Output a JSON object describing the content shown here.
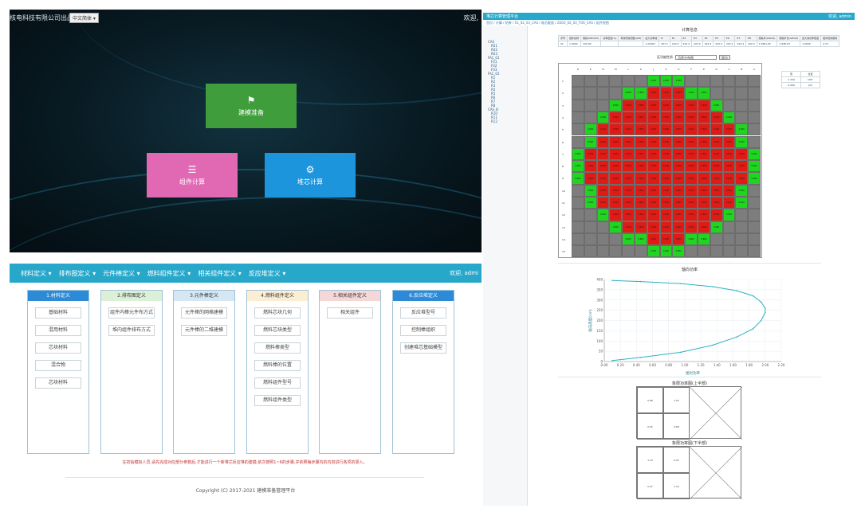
{
  "launcher": {
    "company": "核电科技有限公司出品",
    "lang_select": "中文简体 ▾",
    "welcome": "欢迎,",
    "tiles": [
      {
        "label": "建模准备",
        "icon": "flag-icon",
        "color": "#3f9d3c"
      },
      {
        "label": "组件计算",
        "icon": "list-icon",
        "color": "#e169b4"
      },
      {
        "label": "堆芯计算",
        "icon": "gear-icon",
        "color": "#1c95dd"
      }
    ]
  },
  "definitions": {
    "nav": [
      "材料定义 ▾",
      "排布图定义 ▾",
      "元件棒定义 ▾",
      "燃料组件定义 ▾",
      "相关组件定义 ▾",
      "反应堆定义 ▾"
    ],
    "user": "欢迎, admi",
    "columns": [
      {
        "title": "1.材料定义",
        "head_color": "#2c8ad6",
        "head_text": "#ffffff",
        "items": [
          "基础材料",
          "混用材料",
          "芯块材料",
          "混合物",
          "芯块材料"
        ]
      },
      {
        "title": "2.排布图定义",
        "head_color": "#dcefd7",
        "head_text": "#333333",
        "items": [
          "组件内棒元件布方式",
          "堆内组件排布方式"
        ]
      },
      {
        "title": "3.元件棒定义",
        "head_color": "#d4e7f3",
        "head_text": "#333333",
        "items": [
          "元件棒的网格建模",
          "元件棒的二维建模"
        ]
      },
      {
        "title": "4.燃料组件定义",
        "head_color": "#fbeed3",
        "head_text": "#333333",
        "items": [
          "燃料芯块几何",
          "燃料芯块类型",
          "燃料棒类型",
          "燃料棒的位置",
          "燃料组件型号",
          "燃料组件类型"
        ]
      },
      {
        "title": "5.相关组件定义",
        "head_color": "#f5d7d7",
        "head_text": "#333333",
        "items": [
          "相关组件"
        ]
      },
      {
        "title": "6.反应堆定义",
        "head_color": "#2c8ad6",
        "head_text": "#ffffff",
        "items": [
          "反应堆型号",
          "控制棒组织",
          "创建堆芯基础模型"
        ]
      }
    ],
    "note": "在初始模拟人员,请先完成对应部分参数后,才能进行一个新堆芯反应堆的建模,依次按照1~6的步骤,并依照每步骤内的内容进行各项的录入。",
    "footer": "Copyright (C) 2017-2021 建模准备管理平台"
  },
  "assembly": {
    "app_title": "堆芯计算管理平台",
    "user": "欢迎, admin",
    "breadcrumb": "首页 / 计算 / 结果 / 01_02_03_CAS / 堆芯截面 / 2D03_02_03_TO6_CAS / 组件视图",
    "tree": [
      "CAS",
      "R01",
      "R02",
      "R03",
      "FAC_01",
      "F01",
      "F02",
      "F03",
      "FAC_02",
      "R1",
      "R2",
      "R3",
      "R4",
      "R5",
      "R6",
      "R7",
      "R8",
      "CAS_B",
      "R10",
      "R11",
      "R12"
    ],
    "section_info": "计算信息",
    "info_headers": [
      "序号",
      "组件名称",
      "燃耗(MWd/tU)",
      "功率密度(%)",
      "有效增殖因数(keff)",
      "最大功率峰",
      "B",
      "E1",
      "E2",
      "E3",
      "E4",
      "E5",
      "E6",
      "E7",
      "E8",
      "燃耗步(GWd/t)",
      "燃耗步长(GWd/t)",
      "最大线功率密度",
      "组件径向燃耗"
    ],
    "info_values": [
      "01",
      "1.0000",
      "100.00",
      "",
      "",
      "1.15403",
      "207.1",
      "222.4",
      "222.4",
      "222.4",
      "222.4",
      "222.4",
      "222.4",
      "222.4",
      "222.4",
      "1.99E+03",
      "1.64E-03",
      "1.0000",
      "4.74"
    ],
    "select_label": "区功能性质",
    "select_value": "功率分布图",
    "select_btn": "显示",
    "col_labels": [
      "R",
      "P",
      "N",
      "M",
      "L",
      "K",
      "J",
      "H",
      "G",
      "F",
      "E",
      "D",
      "C",
      "B",
      "A"
    ],
    "row_labels": [
      "1",
      "2",
      "3",
      "4",
      "5",
      "6",
      "7",
      "8",
      "9",
      "10",
      "11",
      "12",
      "13",
      "14",
      "15"
    ],
    "grid_colors": {
      "0": "#7d7d7d",
      "1": "#1fd51f",
      "2": "#e01a14"
    },
    "grid": [
      "000000111000000",
      "000011222110000",
      "000122222221000",
      "001222222222100",
      "012222222222210",
      "012222222222210",
      "122222222222221",
      "122222222222221",
      "122222222222221",
      "012222222222210",
      "012222222222210",
      "001222222222100",
      "000122222221000",
      "000011222110000",
      "000000111000000"
    ],
    "grid_label": "0.800",
    "legend": {
      "headers": [
        "值",
        "位置"
      ],
      "rows": [
        [
          "1.164",
          "D07"
        ],
        [
          "0.209",
          "J15"
        ]
      ]
    },
    "chart_title": "轴向功率",
    "chart_xlabel": "相对功率",
    "chart_ylabel": "轴向高度(cm)",
    "diagram1_title": "象限功率图(上半部)",
    "diagram2_title": "象限功率图(下半部)",
    "diagram_values": [
      "0.88",
      "1.02",
      "0.95",
      "1.10",
      "0.91",
      "0.97"
    ],
    "chart_data": {
      "type": "line",
      "title": "",
      "xlabel": "相对功率",
      "ylabel": "轴向高度(cm)",
      "x_ticks": [
        "0.00",
        "0.20",
        "0.40",
        "0.60",
        "0.80",
        "1.00",
        "1.20",
        "1.40",
        "1.60",
        "1.80",
        "2.00",
        "2.20"
      ],
      "y_ticks": [
        "0",
        "50",
        "100",
        "150",
        "200",
        "250",
        "300",
        "350",
        "400"
      ],
      "xlim": [
        0,
        2.2
      ],
      "ylim": [
        0,
        400
      ],
      "series": [
        {
          "color": "#2cb2c3",
          "x": [
            0.1,
            0.45,
            0.95,
            1.35,
            1.65,
            1.85,
            1.95,
            2.0,
            2.0,
            1.95,
            1.85,
            1.65,
            1.35,
            0.95,
            0.45,
            0.1
          ],
          "y": [
            5,
            20,
            45,
            80,
            120,
            160,
            200,
            240,
            260,
            290,
            320,
            345,
            365,
            380,
            390,
            395
          ]
        }
      ]
    }
  }
}
